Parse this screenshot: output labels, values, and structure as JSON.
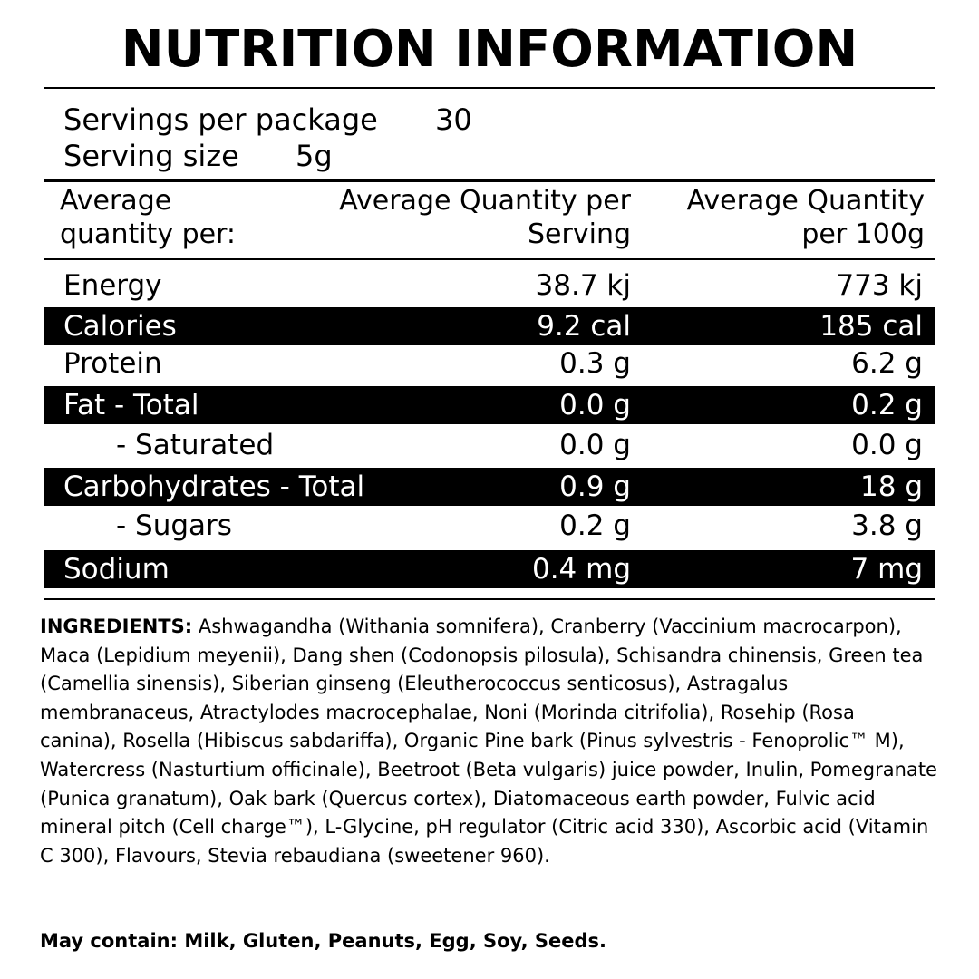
{
  "title": "NUTRITION INFORMATION",
  "servings": {
    "per_package_label": "Servings per package",
    "per_package_value": "30",
    "size_label": "Serving size",
    "size_value": "5g"
  },
  "columns": {
    "label_line1": "Average",
    "label_line2": "quantity per:",
    "serving_line1": "Average Quantity per",
    "serving_line2": "Serving",
    "per100_line1": "Average Quantity",
    "per100_line2": "per 100g"
  },
  "rows": [
    {
      "name": "Energy",
      "serving": "38.7 kj",
      "per100": "773 kj"
    },
    {
      "name": "Calories",
      "serving": "9.2 cal",
      "per100": "185 cal"
    },
    {
      "name": "Protein",
      "serving": "0.3 g",
      "per100": "6.2 g"
    },
    {
      "name": "Fat - Total",
      "serving": "0.0 g",
      "per100": "0.2 g"
    },
    {
      "name": "- Saturated",
      "serving": "0.0 g",
      "per100": "0.0 g"
    },
    {
      "name": "Carbohydrates - Total",
      "serving": "0.9 g",
      "per100": "18 g"
    },
    {
      "name": "- Sugars",
      "serving": "0.2 g",
      "per100": "3.8 g"
    },
    {
      "name": "Sodium",
      "serving": "0.4 mg",
      "per100": "7 mg"
    }
  ],
  "ingredients": {
    "label": "INGREDIENTS:",
    "text": " Ashwagandha (Withania somnifera), Cranberry (Vaccinium macrocarpon), Maca (Lepidium meyenii), Dang shen (Codonopsis pilosula), Schisandra chinensis, Green tea (Camellia sinensis), Siberian ginseng (Eleutherococcus senticosus), Astragalus membranaceus, Atractylodes macrocephalae, Noni (Morinda citrifolia), Rosehip (Rosa canina), Rosella (Hibiscus sabdariffa), Organic Pine bark (Pinus sylvestris - Fenoprolic™ M), Watercress (Nasturtium officinale), Beetroot (Beta vulgaris) juice powder, Inulin, Pomegranate (Punica granatum), Oak bark (Quercus cortex), Diatomaceous earth powder, Fulvic acid mineral pitch (Cell charge™), L-Glycine, pH regulator (Citric acid 330), Ascorbic acid (Vitamin C 300), Flavours, Stevia rebaudiana (sweetener 960)."
  },
  "allergens": "May contain: Milk, Gluten, Peanuts, Egg, Soy, Seeds."
}
